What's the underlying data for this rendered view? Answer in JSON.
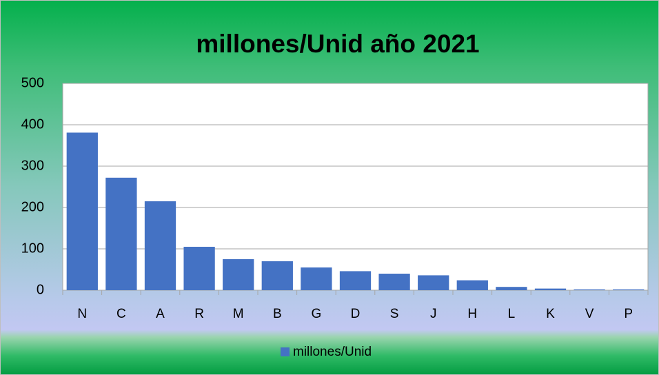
{
  "chart_data": {
    "type": "bar",
    "title": "millones/Unid año 2021",
    "categories": [
      "N",
      "C",
      "A",
      "R",
      "M",
      "B",
      "G",
      "D",
      "S",
      "J",
      "H",
      "L",
      "K",
      "V",
      "P"
    ],
    "series": [
      {
        "name": "millones/Unid",
        "color": "#4472c4",
        "values": [
          381,
          272,
          215,
          105,
          75,
          70,
          55,
          46,
          40,
          36,
          24,
          8,
          4,
          2,
          2
        ]
      }
    ],
    "ylim": [
      0,
      500
    ],
    "yticks": [
      0,
      100,
      200,
      300,
      400,
      500
    ],
    "grid": true,
    "legend": "bottom"
  }
}
